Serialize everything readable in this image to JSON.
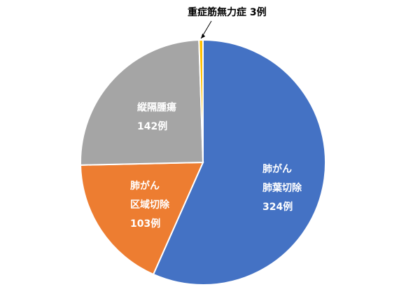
{
  "chart_data": {
    "type": "pie",
    "title": "",
    "legend": "none",
    "slices": [
      {
        "lines": [
          "肺がん",
          "肺葉切除",
          "324例"
        ],
        "value": 324,
        "color": "#4472C4",
        "label_style": "inside"
      },
      {
        "lines": [
          "肺がん",
          "区域切除",
          "103例"
        ],
        "value": 103,
        "color": "#ED7D31",
        "label_style": "inside"
      },
      {
        "lines": [
          "縦隔腫瘍",
          "142例"
        ],
        "value": 142,
        "color": "#A5A5A5",
        "label_style": "inside"
      },
      {
        "lines": [
          "重症筋無力症 3例"
        ],
        "value": 3,
        "color": "#FFC000",
        "label_style": "callout"
      }
    ]
  }
}
